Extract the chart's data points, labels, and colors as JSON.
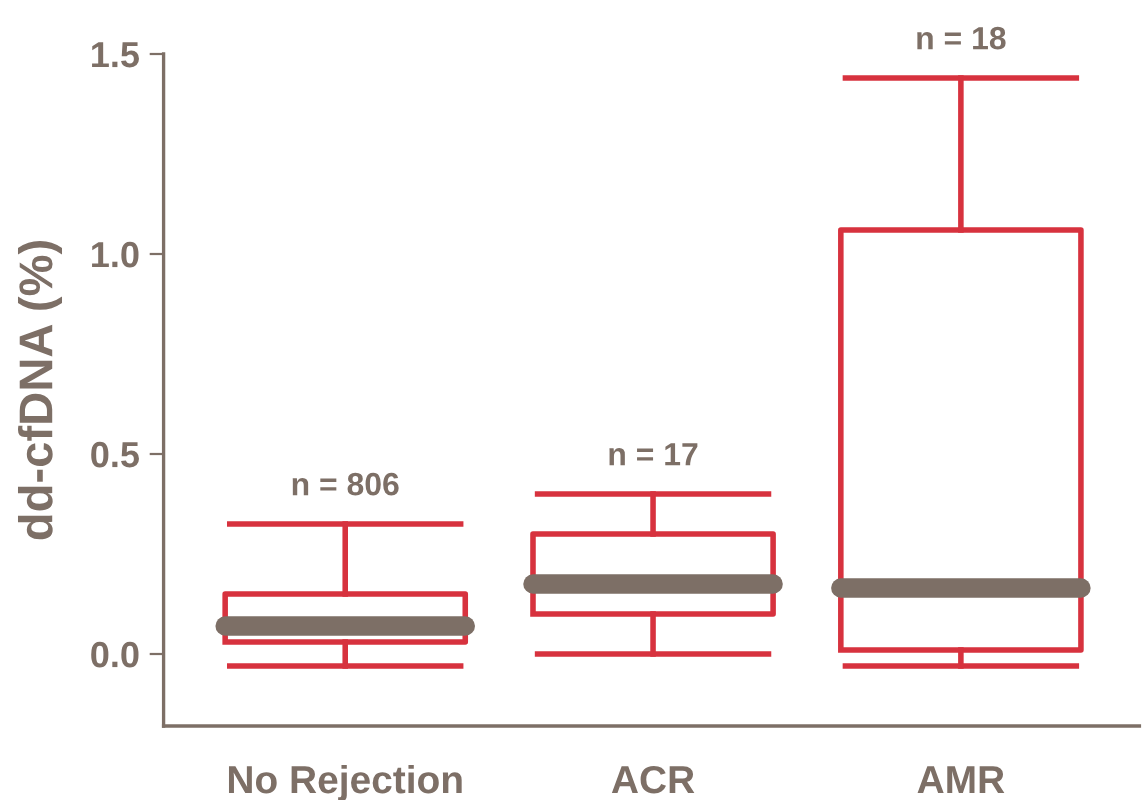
{
  "chart_data": {
    "type": "box",
    "ylabel": "dd-cfDNA (%)",
    "categories": [
      "No Rejection",
      "ACR",
      "AMR"
    ],
    "boxes": [
      {
        "low": -0.03,
        "q1": 0.03,
        "median": 0.07,
        "q3": 0.15,
        "high": 0.325
      },
      {
        "low": 0.0,
        "q1": 0.1,
        "median": 0.175,
        "q3": 0.3,
        "high": 0.4
      },
      {
        "low": -0.03,
        "q1": 0.01,
        "median": 0.165,
        "q3": 1.06,
        "high": 1.44
      }
    ],
    "color": "#d7323e",
    "ylim": [
      -0.18,
      1.5
    ],
    "yticks": [
      {
        "value": 0,
        "label": "0.0"
      },
      0.5,
      {
        "value": 1,
        "label": "1.0"
      },
      1.5
    ],
    "annotations": [
      "n = 806",
      "n = 17",
      "n = 18"
    ],
    "grid": false,
    "legend": false
  }
}
